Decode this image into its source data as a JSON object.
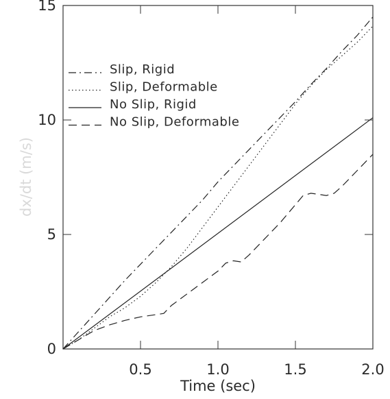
{
  "chart_data": {
    "type": "line",
    "title": "",
    "xlabel": "Time (sec)",
    "ylabel": "dx/dt (m/s)",
    "xlim": [
      0,
      2.0
    ],
    "ylim": [
      0,
      15
    ],
    "x_ticks": [
      0.5,
      1.0,
      1.5,
      2.0
    ],
    "x_tick_labels": [
      "0.5",
      "1.0",
      "1.5",
      "2.0"
    ],
    "y_ticks": [
      0,
      5,
      10,
      15
    ],
    "y_tick_labels": [
      "0",
      "5",
      "10",
      "15"
    ],
    "grid": false,
    "legend_position": "top-left",
    "series": [
      {
        "name": "Slip, Rigid",
        "dash": "dashdot",
        "x": [
          0,
          0.1,
          0.2,
          0.3,
          0.4,
          0.5,
          0.6,
          0.7,
          0.8,
          0.9,
          1.0,
          1.1,
          1.2,
          1.3,
          1.4,
          1.5,
          1.6,
          1.7,
          1.8,
          1.9,
          2.0
        ],
        "y": [
          0,
          0.75,
          1.5,
          2.25,
          3.0,
          3.7,
          4.4,
          5.1,
          5.8,
          6.5,
          7.3,
          8.0,
          8.7,
          9.4,
          10.1,
          10.8,
          11.55,
          12.25,
          13.0,
          13.7,
          14.5
        ]
      },
      {
        "name": "Slip, Deformable",
        "dash": "dotted",
        "x": [
          0,
          0.1,
          0.2,
          0.3,
          0.4,
          0.5,
          0.6,
          0.7,
          0.8,
          0.9,
          1.0,
          1.1,
          1.2,
          1.3,
          1.4,
          1.5,
          1.6,
          1.7,
          1.8,
          1.9,
          2.0
        ],
        "y": [
          0,
          0.4,
          0.9,
          1.4,
          1.8,
          2.3,
          2.9,
          3.6,
          4.4,
          5.3,
          6.2,
          7.1,
          8.0,
          8.9,
          9.8,
          10.7,
          11.5,
          12.2,
          12.8,
          13.4,
          14.1
        ]
      },
      {
        "name": "No Slip, Rigid",
        "dash": "solid",
        "x": [
          0,
          2.0
        ],
        "y": [
          0,
          10.1
        ]
      },
      {
        "name": "No Slip, Deformable",
        "dash": "dashed",
        "x": [
          0,
          0.1,
          0.2,
          0.3,
          0.4,
          0.5,
          0.6,
          0.65,
          0.7,
          0.8,
          0.9,
          1.0,
          1.05,
          1.1,
          1.15,
          1.2,
          1.3,
          1.4,
          1.5,
          1.55,
          1.6,
          1.65,
          1.7,
          1.75,
          1.8,
          1.9,
          2.0
        ],
        "y": [
          0,
          0.4,
          0.8,
          1.05,
          1.25,
          1.4,
          1.5,
          1.55,
          1.9,
          2.4,
          2.9,
          3.4,
          3.75,
          3.85,
          3.8,
          4.1,
          4.8,
          5.5,
          6.3,
          6.7,
          6.8,
          6.75,
          6.7,
          6.8,
          7.1,
          7.8,
          8.5
        ]
      }
    ]
  }
}
